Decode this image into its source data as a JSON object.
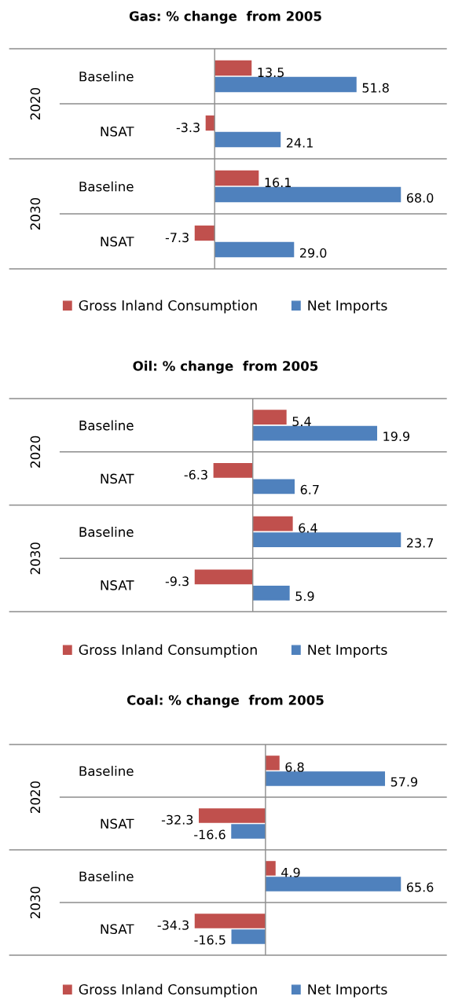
{
  "chart_data": [
    {
      "type": "bar",
      "orientation": "horizontal",
      "title": "Gas: % change  from 2005",
      "categories": [
        "Baseline",
        "NSAT",
        "Baseline",
        "NSAT"
      ],
      "annotations": [
        "2020",
        "2030"
      ],
      "series": [
        {
          "name": "Gross Inland Consumption",
          "color": "#c0504d",
          "values": [
            13.5,
            -3.3,
            16.1,
            -7.3
          ],
          "value_labels": [
            "13.5",
            "-3.3",
            "16.1",
            "-7.3"
          ]
        },
        {
          "name": "Net Imports",
          "color": "#4f81bd",
          "values": [
            51.8,
            24.1,
            68.0,
            29.0
          ],
          "value_labels": [
            "51.8",
            "24.1",
            "68.0",
            "29.0"
          ]
        }
      ],
      "legend": "bottom",
      "tick_labels": "y"
    },
    {
      "type": "bar",
      "orientation": "horizontal",
      "title": "Oil: % change  from 2005",
      "categories": [
        "Baseline",
        "NSAT",
        "Baseline",
        "NSAT"
      ],
      "annotations": [
        "2020",
        "2030"
      ],
      "series": [
        {
          "name": "Gross Inland Consumption",
          "color": "#c0504d",
          "values": [
            5.4,
            -6.3,
            6.4,
            -9.3
          ],
          "value_labels": [
            "5.4",
            "-6.3",
            "6.4",
            "-9.3"
          ]
        },
        {
          "name": "Net Imports",
          "color": "#4f81bd",
          "values": [
            19.9,
            6.7,
            23.7,
            5.9
          ],
          "value_labels": [
            "19.9",
            "6.7",
            "23.7",
            "5.9"
          ]
        }
      ],
      "legend": "bottom",
      "tick_labels": "y"
    },
    {
      "type": "bar",
      "orientation": "horizontal",
      "title": "Coal: % change  from 2005",
      "categories": [
        "Baseline",
        "NSAT",
        "Baseline",
        "NSAT"
      ],
      "annotations": [
        "2020",
        "2030"
      ],
      "series": [
        {
          "name": "Gross Inland Consumption",
          "color": "#c0504d",
          "values": [
            6.8,
            -32.3,
            4.9,
            -34.3
          ],
          "value_labels": [
            "6.8",
            "-32.3",
            "4.9",
            "-34.3"
          ]
        },
        {
          "name": "Net Imports",
          "color": "#4f81bd",
          "values": [
            57.9,
            -16.6,
            65.6,
            -16.5
          ],
          "value_labels": [
            "57.9",
            "-16.6",
            "65.6",
            "-16.5"
          ]
        }
      ],
      "legend": "bottom",
      "tick_labels": "y"
    }
  ]
}
